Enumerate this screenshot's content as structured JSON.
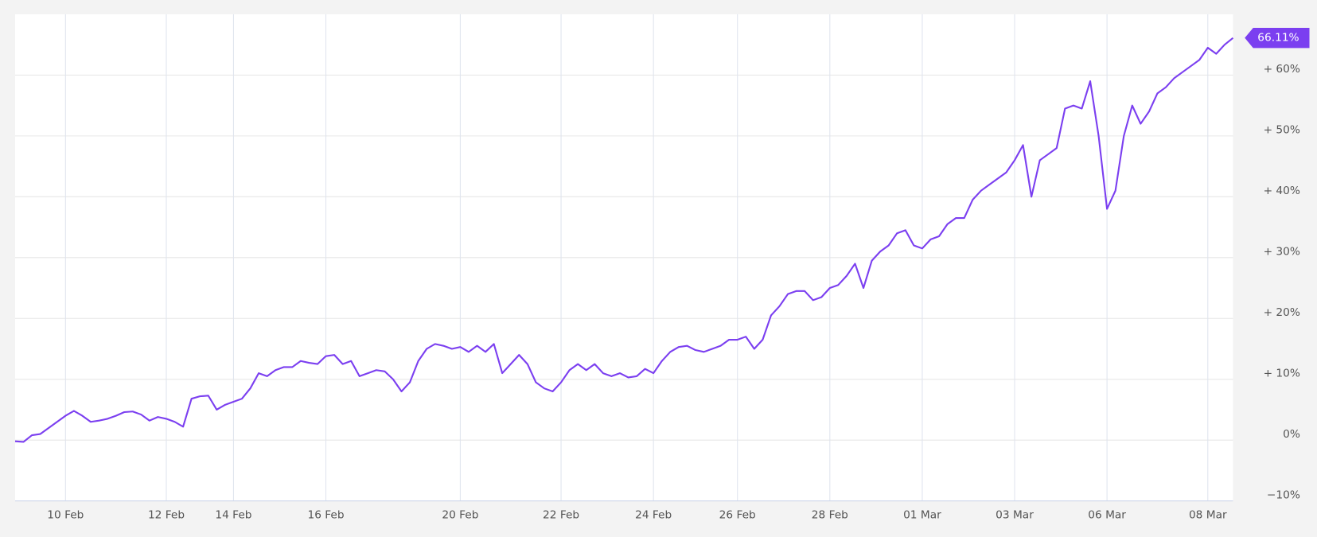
{
  "chart_data": {
    "type": "line",
    "categories": [
      null,
      null,
      null,
      null,
      null,
      null,
      "10 Feb",
      null,
      null,
      null,
      null,
      null,
      null,
      null,
      null,
      null,
      null,
      null,
      "12 Feb",
      null,
      null,
      null,
      null,
      null,
      null,
      null,
      "14 Feb",
      null,
      null,
      null,
      null,
      null,
      null,
      null,
      null,
      null,
      null,
      "16 Feb",
      null,
      null,
      null,
      null,
      null,
      null,
      null,
      null,
      null,
      null,
      null,
      null,
      null,
      null,
      null,
      "20 Feb",
      null,
      null,
      null,
      null,
      null,
      null,
      null,
      null,
      null,
      null,
      null,
      "22 Feb",
      null,
      null,
      null,
      null,
      null,
      null,
      null,
      null,
      null,
      null,
      "24 Feb",
      null,
      null,
      null,
      null,
      null,
      null,
      null,
      null,
      null,
      "26 Feb",
      null,
      null,
      null,
      null,
      null,
      null,
      null,
      null,
      null,
      null,
      "28 Feb",
      null,
      null,
      null,
      null,
      null,
      null,
      null,
      null,
      null,
      null,
      "01 Mar",
      null,
      null,
      null,
      null,
      null,
      null,
      null,
      null,
      null,
      null,
      "03 Mar",
      null,
      null,
      null,
      null,
      null,
      null,
      null,
      null,
      null,
      null,
      "06 Mar",
      null,
      null,
      null,
      null,
      null,
      null,
      null,
      null,
      null,
      null,
      null,
      "08 Mar",
      null,
      null,
      null
    ],
    "series": [
      {
        "color": "#7b3ff0",
        "values": [
          -0.2,
          -0.3,
          0.8,
          1.0,
          2.0,
          3.0,
          4.0,
          4.8,
          4.0,
          3.0,
          3.2,
          3.5,
          4.0,
          4.6,
          4.7,
          4.2,
          3.2,
          3.8,
          3.5,
          3.0,
          2.2,
          6.8,
          7.2,
          7.3,
          5.0,
          5.8,
          6.3,
          6.8,
          8.5,
          11.0,
          10.5,
          11.5,
          12.0,
          12.0,
          13.0,
          12.7,
          12.5,
          13.8,
          14.0,
          12.5,
          13.0,
          10.5,
          11.0,
          11.5,
          11.3,
          10.0,
          8.0,
          9.5,
          13.0,
          15.0,
          15.8,
          15.5,
          15.0,
          15.3,
          14.5,
          15.5,
          14.5,
          15.8,
          11.0,
          12.5,
          14.0,
          12.5,
          9.5,
          8.5,
          8.0,
          9.5,
          11.5,
          12.5,
          11.5,
          12.5,
          11.0,
          10.5,
          11.0,
          10.3,
          10.5,
          11.7,
          11.0,
          13.0,
          14.5,
          15.3,
          15.5,
          14.8,
          14.5,
          15.0,
          15.5,
          16.5,
          16.5,
          17.0,
          15.0,
          16.5,
          20.5,
          22.0,
          24.0,
          24.5,
          24.5,
          23.0,
          23.5,
          25.0,
          25.5,
          27.0,
          29.0,
          25.0,
          29.5,
          31.0,
          32.0,
          34.0,
          34.5,
          32.0,
          31.5,
          33.0,
          33.5,
          35.5,
          36.5,
          36.5,
          39.5,
          41.0,
          42.0,
          43.0,
          44.0,
          46.0,
          48.5,
          40.0,
          46.0,
          47.0,
          48.0,
          54.5,
          55.0,
          54.5,
          59.0,
          50.0,
          38.0,
          41.0,
          50.0,
          55.0,
          52.0,
          54.0,
          57.0,
          58.0,
          59.5,
          60.5,
          61.5,
          62.5,
          64.5,
          63.5,
          65.0,
          66.11
        ]
      }
    ],
    "end_label": {
      "value": 66.11,
      "label": "66.11%"
    },
    "ylim": [
      -10,
      70
    ],
    "yticks": [
      {
        "value": -10,
        "label": "−10%"
      },
      {
        "value": 0,
        "label": "0%"
      },
      {
        "value": 10,
        "label": "+ 10%"
      },
      {
        "value": 20,
        "label": "+ 20%"
      },
      {
        "value": 30,
        "label": "+ 30%"
      },
      {
        "value": 40,
        "label": "+ 40%"
      },
      {
        "value": 50,
        "label": "+ 50%"
      },
      {
        "value": 60,
        "label": "+ 60%"
      }
    ],
    "grid": true
  }
}
